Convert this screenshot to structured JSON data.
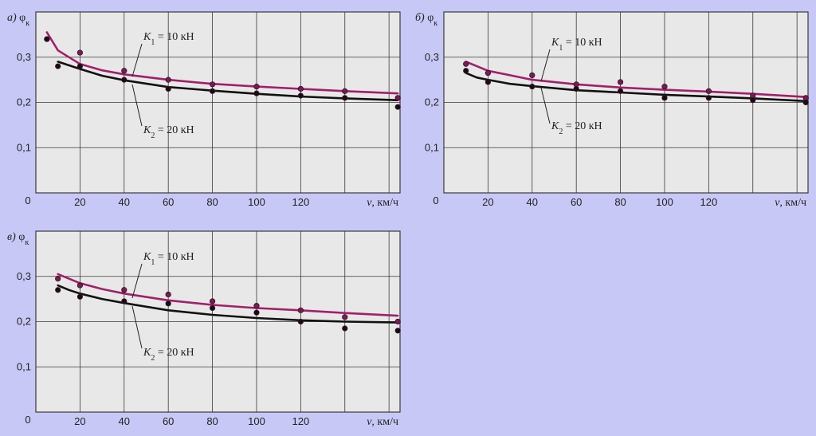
{
  "colors": {
    "background": "#c8c8f6",
    "plot_fill": "#e8e8e8",
    "grid": "#3a3a3a",
    "k1_curve": "#a0206a",
    "k2_curve": "#111111",
    "k1_points": "#7a1a55",
    "k2_points": "#111111"
  },
  "chart_data": [
    {
      "type": "line",
      "panel_letter": "а)",
      "ylabel": "φ",
      "ylabel_sub": "к",
      "xlabel": "v, км/ч",
      "origin_label": "0",
      "xlim": [
        0,
        165
      ],
      "ylim": [
        0,
        0.4
      ],
      "x_ticks": [
        20,
        40,
        60,
        80,
        100,
        120
      ],
      "x_tick_labels": [
        "20",
        "40",
        "60",
        "80",
        "100",
        "120"
      ],
      "y_ticks": [
        0.1,
        0.2,
        0.3
      ],
      "y_tick_labels": [
        "0,1",
        "0,2",
        "0,3"
      ],
      "grid_x": [
        20,
        40,
        60,
        80,
        100,
        120,
        140,
        160
      ],
      "grid_y": [
        0.1,
        0.2,
        0.3
      ],
      "annotations": [
        {
          "text_italic": "K",
          "sub": "1",
          "text_rest": " = 10 кН"
        },
        {
          "text_italic": "K",
          "sub": "2",
          "text_rest": " = 20 кН"
        }
      ],
      "series": [
        {
          "curve": {
            "x": [
              5,
              10,
              20,
              30,
              40,
              60,
              80,
              100,
              120,
              140,
              164
            ],
            "y": [
              0.355,
              0.315,
              0.285,
              0.271,
              0.262,
              0.25,
              0.241,
              0.235,
              0.23,
              0.225,
              0.22
            ]
          },
          "points": {
            "x": [
              5,
              20,
              40,
              60,
              80,
              100,
              120,
              140,
              164
            ],
            "y": [
              0.34,
              0.31,
              0.27,
              0.25,
              0.24,
              0.235,
              0.23,
              0.225,
              0.21
            ]
          }
        },
        {
          "curve": {
            "x": [
              10,
              20,
              30,
              40,
              60,
              80,
              100,
              120,
              140,
              164
            ],
            "y": [
              0.29,
              0.274,
              0.259,
              0.249,
              0.234,
              0.226,
              0.219,
              0.213,
              0.209,
              0.205
            ]
          },
          "points": {
            "x": [
              5,
              10,
              20,
              40,
              60,
              80,
              100,
              120,
              140,
              164
            ],
            "y": [
              0.34,
              0.28,
              0.28,
              0.25,
              0.23,
              0.225,
              0.22,
              0.215,
              0.21,
              0.19
            ]
          }
        }
      ]
    },
    {
      "type": "line",
      "panel_letter": "б)",
      "ylabel": "φ",
      "ylabel_sub": "к",
      "xlabel": "v, км/ч",
      "origin_label": "0",
      "xlim": [
        0,
        165
      ],
      "ylim": [
        0,
        0.4
      ],
      "x_ticks": [
        20,
        40,
        60,
        80,
        100,
        120
      ],
      "x_tick_labels": [
        "20",
        "40",
        "60",
        "80",
        "100",
        "120"
      ],
      "y_ticks": [
        0.1,
        0.2,
        0.3
      ],
      "y_tick_labels": [
        "0,1",
        "0,2",
        "0,3"
      ],
      "grid_x": [
        20,
        40,
        60,
        80,
        100,
        120,
        140,
        160
      ],
      "grid_y": [
        0.1,
        0.2,
        0.3
      ],
      "annotations": [
        {
          "text_italic": "K",
          "sub": "1",
          "text_rest": " = 10 кН"
        },
        {
          "text_italic": "K",
          "sub": "2",
          "text_rest": " = 20 кН"
        }
      ],
      "series": [
        {
          "curve": {
            "x": [
              10,
              15,
              20,
              30,
              40,
              60,
              80,
              100,
              120,
              140,
              164
            ],
            "y": [
              0.29,
              0.28,
              0.27,
              0.26,
              0.25,
              0.24,
              0.233,
              0.228,
              0.224,
              0.219,
              0.212
            ]
          },
          "points": {
            "x": [
              10,
              20,
              40,
              60,
              80,
              100,
              120,
              140,
              164
            ],
            "y": [
              0.285,
              0.265,
              0.26,
              0.24,
              0.245,
              0.235,
              0.225,
              0.215,
              0.21
            ]
          }
        },
        {
          "curve": {
            "x": [
              10,
              15,
              20,
              30,
              40,
              60,
              80,
              100,
              120,
              140,
              164
            ],
            "y": [
              0.265,
              0.255,
              0.25,
              0.241,
              0.236,
              0.227,
              0.222,
              0.217,
              0.213,
              0.209,
              0.203
            ]
          },
          "points": {
            "x": [
              10,
              20,
              40,
              60,
              80,
              100,
              120,
              140,
              164
            ],
            "y": [
              0.27,
              0.245,
              0.235,
              0.23,
              0.225,
              0.21,
              0.21,
              0.205,
              0.2
            ]
          }
        }
      ]
    },
    {
      "type": "line",
      "panel_letter": "в)",
      "ylabel": "φ",
      "ylabel_sub": "к",
      "xlabel": "v, км/ч",
      "origin_label": "0",
      "xlim": [
        0,
        165
      ],
      "ylim": [
        0,
        0.4
      ],
      "x_ticks": [
        20,
        40,
        60,
        80,
        100,
        120
      ],
      "x_tick_labels": [
        "20",
        "40",
        "60",
        "80",
        "100",
        "120"
      ],
      "y_ticks": [
        0.1,
        0.2,
        0.3
      ],
      "y_tick_labels": [
        "0,1",
        "0,2",
        "0,3"
      ],
      "grid_x": [
        20,
        40,
        60,
        80,
        100,
        120,
        140,
        160
      ],
      "grid_y": [
        0.1,
        0.2,
        0.3
      ],
      "annotations": [
        {
          "text_italic": "K",
          "sub": "1",
          "text_rest": " = 10 кН"
        },
        {
          "text_italic": "K",
          "sub": "2",
          "text_rest": " = 20 кН"
        }
      ],
      "series": [
        {
          "curve": {
            "x": [
              10,
              15,
              20,
              30,
              40,
              60,
              80,
              100,
              120,
              140,
              164
            ],
            "y": [
              0.305,
              0.295,
              0.285,
              0.272,
              0.262,
              0.247,
              0.237,
              0.23,
              0.225,
              0.219,
              0.213
            ]
          },
          "points": {
            "x": [
              10,
              20,
              40,
              60,
              80,
              100,
              120,
              140,
              164
            ],
            "y": [
              0.295,
              0.28,
              0.27,
              0.26,
              0.245,
              0.235,
              0.225,
              0.21,
              0.2
            ]
          }
        },
        {
          "curve": {
            "x": [
              10,
              15,
              20,
              30,
              40,
              60,
              80,
              100,
              120,
              140,
              164
            ],
            "y": [
              0.28,
              0.27,
              0.262,
              0.25,
              0.241,
              0.225,
              0.215,
              0.208,
              0.203,
              0.2,
              0.198
            ]
          },
          "points": {
            "x": [
              10,
              20,
              40,
              60,
              80,
              100,
              120,
              140,
              164
            ],
            "y": [
              0.27,
              0.255,
              0.245,
              0.24,
              0.23,
              0.22,
              0.2,
              0.185,
              0.18
            ]
          }
        }
      ]
    }
  ]
}
